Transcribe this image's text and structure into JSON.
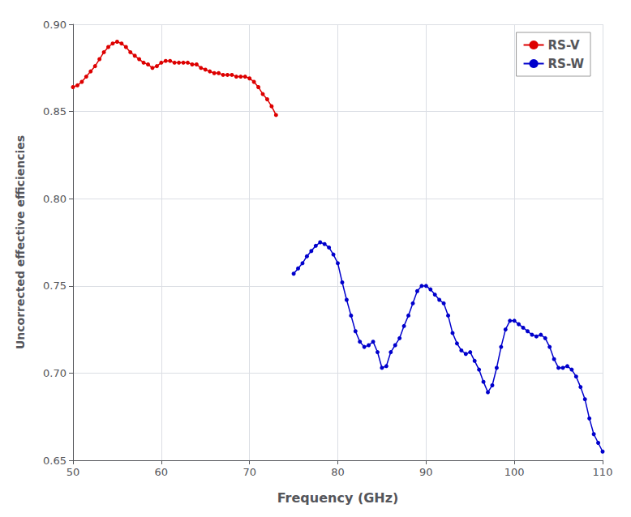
{
  "chart_data": {
    "type": "line",
    "xlabel": "Frequency (GHz)",
    "ylabel": "Uncorrected effective efficiencies",
    "xlim": [
      50,
      110
    ],
    "ylim": [
      0.65,
      0.9
    ],
    "xticks": [
      50,
      60,
      70,
      80,
      90,
      100,
      110
    ],
    "yticks": [
      0.65,
      {
        "value": 0.7,
        "label": "0.70"
      },
      0.75,
      {
        "value": 0.8,
        "label": "0.80"
      },
      0.85,
      {
        "value": 0.9,
        "label": "0.90"
      }
    ],
    "grid": true,
    "legend": "upper right",
    "marker": "circle",
    "series": [
      {
        "name": "RS-V",
        "color": "#dd0000",
        "x": [
          50,
          50.5,
          51,
          51.5,
          52,
          52.5,
          53,
          53.5,
          54,
          54.5,
          55,
          55.5,
          56,
          56.5,
          57,
          57.5,
          58,
          58.5,
          59,
          59.5,
          60,
          60.5,
          61,
          61.5,
          62,
          62.5,
          63,
          63.5,
          64,
          64.5,
          65,
          65.5,
          66,
          66.5,
          67,
          67.5,
          68,
          68.5,
          69,
          69.5,
          70,
          70.5,
          71,
          71.5,
          72,
          72.5,
          73
        ],
        "values": [
          0.864,
          0.865,
          0.867,
          0.87,
          0.873,
          0.876,
          0.88,
          0.884,
          0.887,
          0.889,
          0.89,
          0.889,
          0.887,
          0.884,
          0.882,
          0.88,
          0.878,
          0.877,
          0.875,
          0.876,
          0.878,
          0.879,
          0.879,
          0.878,
          0.878,
          0.878,
          0.878,
          0.877,
          0.877,
          0.875,
          0.874,
          0.873,
          0.872,
          0.872,
          0.871,
          0.871,
          0.871,
          0.87,
          0.87,
          0.87,
          0.869,
          0.867,
          0.864,
          0.86,
          0.857,
          0.853,
          0.848
        ]
      },
      {
        "name": "RS-W",
        "color": "#0000cc",
        "x": [
          75,
          75.5,
          76,
          76.5,
          77,
          77.5,
          78,
          78.5,
          79,
          79.5,
          80,
          80.5,
          81,
          81.5,
          82,
          82.5,
          83,
          83.5,
          84,
          84.5,
          85,
          85.5,
          86,
          86.5,
          87,
          87.5,
          88,
          88.5,
          89,
          89.5,
          90,
          90.5,
          91,
          91.5,
          92,
          92.5,
          93,
          93.5,
          94,
          94.5,
          95,
          95.5,
          96,
          96.5,
          97,
          97.5,
          98,
          98.5,
          99,
          99.5,
          100,
          100.5,
          101,
          101.5,
          102,
          102.5,
          103,
          103.5,
          104,
          104.5,
          105,
          105.5,
          106,
          106.5,
          107,
          107.5,
          108,
          108.5,
          109,
          109.5,
          110
        ],
        "values": [
          0.757,
          0.76,
          0.763,
          0.767,
          0.77,
          0.773,
          0.775,
          0.774,
          0.772,
          0.768,
          0.763,
          0.752,
          0.742,
          0.733,
          0.724,
          0.718,
          0.715,
          0.716,
          0.718,
          0.712,
          0.703,
          0.704,
          0.712,
          0.716,
          0.72,
          0.727,
          0.733,
          0.74,
          0.747,
          0.75,
          0.75,
          0.748,
          0.745,
          0.742,
          0.74,
          0.733,
          0.723,
          0.717,
          0.713,
          0.711,
          0.712,
          0.707,
          0.702,
          0.695,
          0.689,
          0.693,
          0.703,
          0.715,
          0.725,
          0.73,
          0.73,
          0.728,
          0.726,
          0.724,
          0.722,
          0.721,
          0.722,
          0.72,
          0.715,
          0.708,
          0.703,
          0.703,
          0.704,
          0.702,
          0.698,
          0.692,
          0.685,
          0.674,
          0.665,
          0.66,
          0.655
        ]
      }
    ]
  }
}
